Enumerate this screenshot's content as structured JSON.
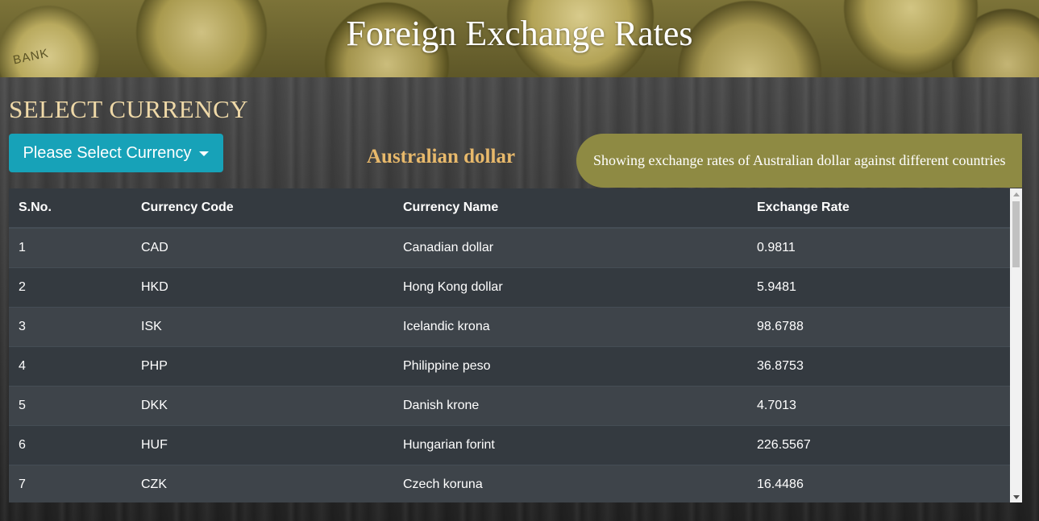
{
  "header": {
    "title": "Foreign Exchange Rates",
    "bank_coin_text": "BANK"
  },
  "currency_section": {
    "heading": "SELECT CURRENCY",
    "dropdown_label": "Please Select Currency",
    "selected_currency": "Australian dollar",
    "info_text": "Showing exchange rates of Australian dollar against different countries"
  },
  "table": {
    "columns": [
      "S.No.",
      "Currency Code",
      "Currency Name",
      "Exchange Rate"
    ],
    "rows": [
      [
        "1",
        "CAD",
        "Canadian dollar",
        "0.9811"
      ],
      [
        "2",
        "HKD",
        "Hong Kong dollar",
        "5.9481"
      ],
      [
        "3",
        "ISK",
        "Icelandic krona",
        "98.6788"
      ],
      [
        "4",
        "PHP",
        "Philippine peso",
        "36.8753"
      ],
      [
        "5",
        "DKK",
        "Danish krone",
        "4.7013"
      ],
      [
        "6",
        "HUF",
        "Hungarian forint",
        "226.5567"
      ],
      [
        "7",
        "CZK",
        "Czech koruna",
        "16.4486"
      ]
    ]
  },
  "colors": {
    "dropdown_button": "#17a2b8",
    "info_pill": "#8e8a43",
    "selected_currency": "#e8b96b",
    "heading": "#efd9a8",
    "table_bg": "#343a40"
  },
  "icons": {
    "dropdown": "caret-down-icon",
    "scroll_up": "scroll-up-arrow-icon",
    "scroll_down": "scroll-down-arrow-icon"
  }
}
